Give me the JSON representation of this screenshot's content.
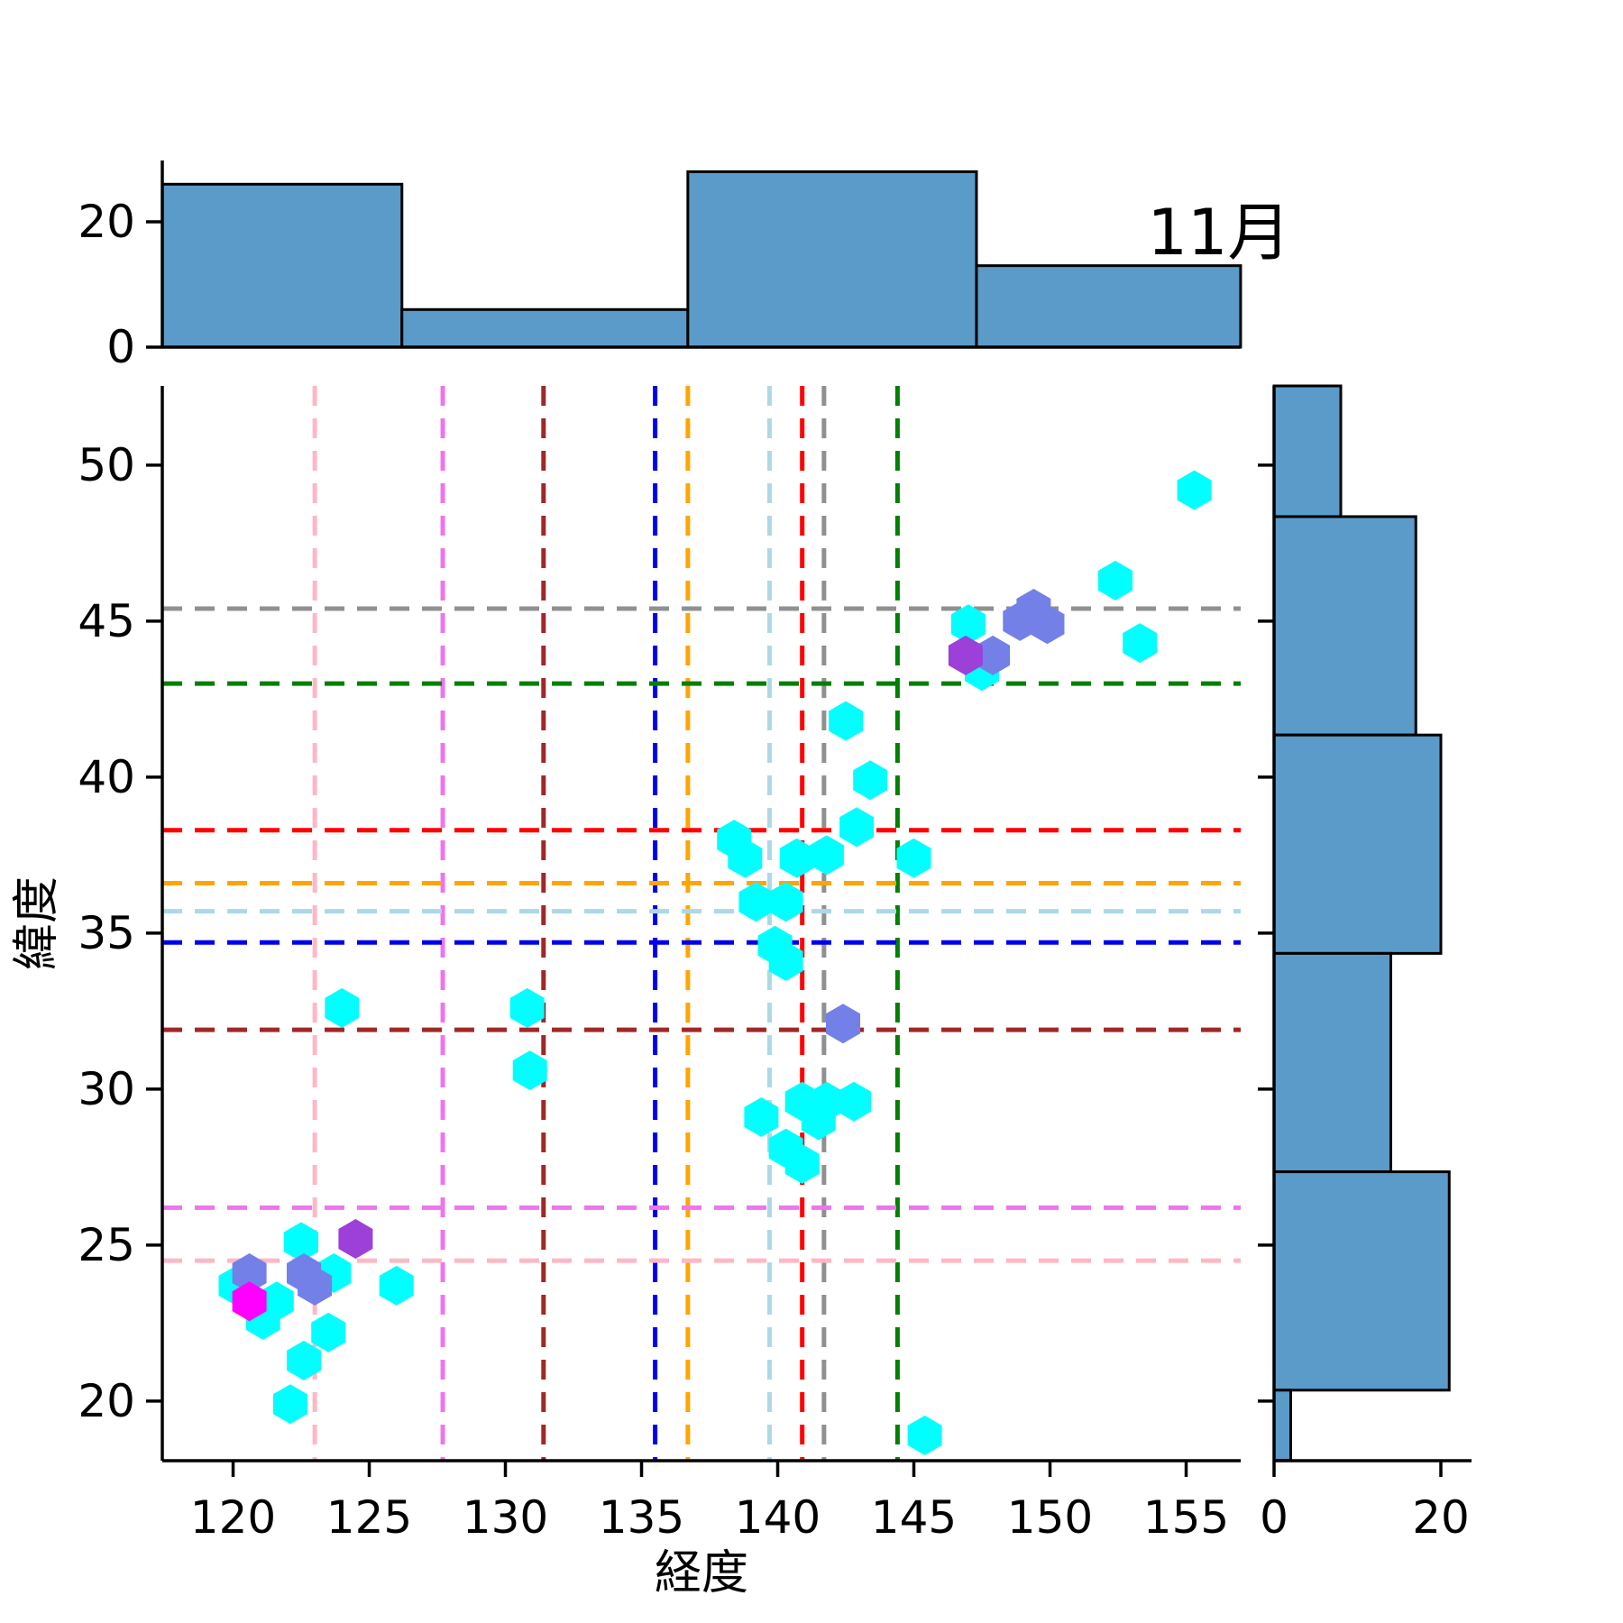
{
  "title": "11月",
  "main_plot": {
    "xlabel": "経度",
    "ylabel": "緯度",
    "x_ticks": [
      120,
      125,
      130,
      135,
      140,
      145,
      150,
      155
    ],
    "y_ticks": [
      50,
      45,
      40,
      35,
      30,
      25,
      20
    ],
    "xlim": [
      117.4,
      157.0
    ],
    "ylim": [
      18.1,
      52.54
    ]
  },
  "chart_data": {
    "type": "scatter",
    "marker": "hexagon",
    "title": "11月",
    "xlabel": "経度",
    "ylabel": "緯度",
    "series": [
      {
        "name": "points-cyan",
        "color": "#00FFFF",
        "points": [
          [
            155.3,
            49.2
          ],
          [
            152.4,
            46.3
          ],
          [
            147.0,
            44.9
          ],
          [
            153.3,
            44.3
          ],
          [
            147.5,
            43.4
          ],
          [
            142.5,
            41.8
          ],
          [
            143.4,
            39.9
          ],
          [
            142.9,
            38.4
          ],
          [
            138.4,
            38.0
          ],
          [
            138.8,
            37.4
          ],
          [
            140.7,
            37.4
          ],
          [
            141.8,
            37.5
          ],
          [
            145.0,
            37.4
          ],
          [
            139.2,
            36.0
          ],
          [
            140.3,
            36.0
          ],
          [
            139.9,
            34.6
          ],
          [
            140.3,
            34.1
          ],
          [
            124.0,
            32.6
          ],
          [
            130.8,
            32.6
          ],
          [
            130.9,
            30.6
          ],
          [
            139.4,
            29.1
          ],
          [
            140.9,
            29.6
          ],
          [
            141.8,
            29.6
          ],
          [
            142.8,
            29.6
          ],
          [
            141.5,
            29.0
          ],
          [
            140.3,
            28.1
          ],
          [
            140.9,
            27.6
          ],
          [
            122.5,
            25.1
          ],
          [
            123.7,
            24.1
          ],
          [
            120.1,
            23.7
          ],
          [
            126.0,
            23.7
          ],
          [
            121.6,
            23.2
          ],
          [
            121.1,
            22.6
          ],
          [
            123.5,
            22.2
          ],
          [
            122.6,
            21.3
          ],
          [
            122.1,
            19.9
          ],
          [
            145.4,
            18.9
          ]
        ]
      },
      {
        "name": "points-slateblue",
        "color": "#7380E8",
        "points": [
          [
            149.4,
            45.4
          ],
          [
            148.9,
            45.0
          ],
          [
            149.9,
            44.9
          ],
          [
            147.9,
            43.9
          ],
          [
            142.4,
            32.1
          ],
          [
            120.6,
            24.1
          ],
          [
            122.6,
            24.1
          ],
          [
            123.0,
            23.7
          ]
        ]
      },
      {
        "name": "points-purple",
        "color": "#9D3FD9",
        "points": [
          [
            146.9,
            43.9
          ],
          [
            124.5,
            25.2
          ]
        ]
      },
      {
        "name": "points-magenta",
        "color": "#FF00FF",
        "points": [
          [
            120.6,
            23.2
          ]
        ]
      }
    ],
    "reference_lines": {
      "vertical": [
        {
          "lon": 123.0,
          "color": "#FFB7C5"
        },
        {
          "lon": 127.7,
          "color": "#EE75EE"
        },
        {
          "lon": 131.4,
          "color": "#A02828"
        },
        {
          "lon": 135.5,
          "color": "#0000EE"
        },
        {
          "lon": 136.7,
          "color": "#FFA500"
        },
        {
          "lon": 139.7,
          "color": "#ADD8E6"
        },
        {
          "lon": 140.9,
          "color": "#FF0000"
        },
        {
          "lon": 141.7,
          "color": "#909090"
        },
        {
          "lon": 144.4,
          "color": "#008000"
        }
      ],
      "horizontal": [
        {
          "lat": 45.4,
          "color": "#909090"
        },
        {
          "lat": 43.0,
          "color": "#008000"
        },
        {
          "lat": 38.3,
          "color": "#FF0000"
        },
        {
          "lat": 36.6,
          "color": "#FFA500"
        },
        {
          "lat": 35.7,
          "color": "#ADD8E6"
        },
        {
          "lat": 34.7,
          "color": "#0000EE"
        },
        {
          "lat": 31.9,
          "color": "#A02828"
        },
        {
          "lat": 26.2,
          "color": "#EE75EE"
        },
        {
          "lat": 24.5,
          "color": "#FFB7C5"
        }
      ]
    },
    "top_histogram": {
      "bin_edges": [
        117.4,
        126.2,
        136.7,
        147.3,
        157.0
      ],
      "counts": [
        26,
        6,
        28,
        13
      ],
      "y_ticks": [
        0,
        20
      ],
      "ylim": [
        0,
        30
      ],
      "fill": "#5B9BC9"
    },
    "right_histogram": {
      "bin_edges": [
        52.54,
        48.35,
        41.35,
        34.35,
        27.35,
        20.35,
        18.1
      ],
      "counts": [
        8,
        17,
        20,
        14,
        21,
        2
      ],
      "x_ticks": [
        0,
        20
      ],
      "xlim": [
        0,
        25
      ],
      "fill": "#5B9BC9"
    }
  }
}
